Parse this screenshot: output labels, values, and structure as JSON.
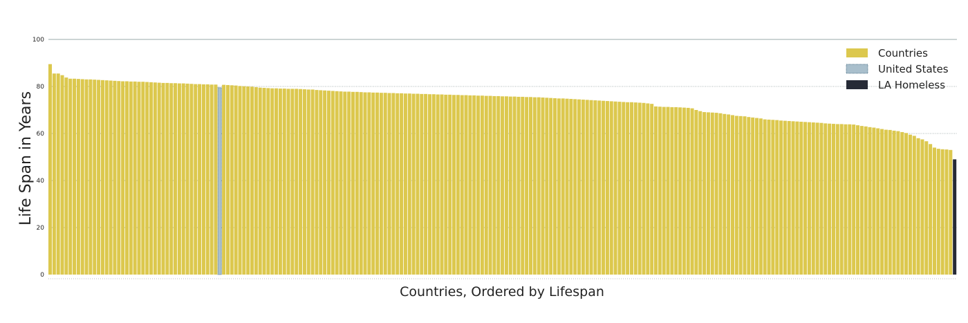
{
  "chart_data": {
    "type": "bar",
    "xlabel": "Countries, Ordered by Lifespan",
    "ylabel": "Life Span in Years",
    "ylim": [
      0,
      100
    ],
    "yticks": [
      0,
      20,
      40,
      60,
      80,
      100
    ],
    "grid": "horizontal dotted",
    "legend_position": "top-right",
    "colors": {
      "Countries": "#dcc84e",
      "United States": "#a9bfcc",
      "LA Homeless": "#262a36"
    },
    "series": [
      {
        "name": "Countries",
        "values": [
          89.5,
          85.5,
          85.5,
          84.8,
          83.8,
          83.3,
          83.3,
          83.2,
          83.1,
          83.0,
          83.0,
          82.9,
          82.8,
          82.7,
          82.6,
          82.5,
          82.4,
          82.3,
          82.2,
          82.2,
          82.1,
          82.1,
          82.0,
          82.0,
          81.9,
          81.8,
          81.7,
          81.6,
          81.5,
          81.5,
          81.4,
          81.4,
          81.3,
          81.3,
          81.2,
          81.1,
          81.0,
          81.0,
          80.9,
          80.9,
          80.8,
          80.8,
          80.7,
          80.6,
          80.5,
          80.4,
          80.2,
          80.1,
          80.0,
          79.9,
          79.7,
          79.5,
          79.4,
          79.3,
          79.2,
          79.2,
          79.1,
          79.1,
          79.0,
          79.0,
          79.0,
          78.9,
          78.8,
          78.7,
          78.7,
          78.5,
          78.4,
          78.3,
          78.2,
          78.1,
          78.0,
          77.9,
          77.8,
          77.8,
          77.7,
          77.7,
          77.6,
          77.5,
          77.5,
          77.4,
          77.4,
          77.3,
          77.3,
          77.2,
          77.2,
          77.1,
          77.1,
          77.0,
          77.0,
          76.9,
          76.9,
          76.8,
          76.8,
          76.7,
          76.7,
          76.6,
          76.6,
          76.5,
          76.5,
          76.4,
          76.4,
          76.3,
          76.3,
          76.2,
          76.2,
          76.1,
          76.1,
          76.0,
          76.0,
          75.9,
          75.9,
          75.8,
          75.8,
          75.7,
          75.7,
          75.6,
          75.6,
          75.5,
          75.5,
          75.4,
          75.4,
          75.3,
          75.2,
          75.1,
          75.0,
          74.9,
          74.9,
          74.8,
          74.7,
          74.6,
          74.5,
          74.4,
          74.3,
          74.2,
          74.1,
          74.0,
          73.9,
          73.8,
          73.7,
          73.6,
          73.5,
          73.4,
          73.3,
          73.3,
          73.2,
          73.1,
          73.0,
          72.8,
          72.6,
          71.5,
          71.4,
          71.3,
          71.3,
          71.2,
          71.2,
          71.1,
          71.0,
          70.9,
          70.7,
          70.0,
          69.5,
          69.1,
          69.0,
          68.9,
          68.8,
          68.6,
          68.3,
          68.1,
          67.8,
          67.5,
          67.4,
          67.3,
          67.0,
          66.8,
          66.6,
          66.4,
          66.0,
          65.9,
          65.8,
          65.7,
          65.5,
          65.4,
          65.3,
          65.2,
          65.1,
          65.0,
          64.9,
          64.8,
          64.7,
          64.6,
          64.5,
          64.3,
          64.2,
          64.1,
          64.0,
          64.0,
          63.9,
          63.9,
          63.8,
          63.5,
          63.2,
          63.0,
          62.7,
          62.5,
          62.2,
          61.9,
          61.6,
          61.5,
          61.2,
          61.0,
          60.6,
          60.2,
          59.5,
          59.0,
          58.0,
          57.5,
          56.7,
          55.5,
          54.0,
          53.5,
          53.3,
          53.2,
          53.0
        ]
      },
      {
        "name": "United States",
        "index": 42,
        "values": [
          79.5
        ]
      },
      {
        "name": "LA Homeless",
        "values": [
          49.0
        ]
      }
    ]
  }
}
